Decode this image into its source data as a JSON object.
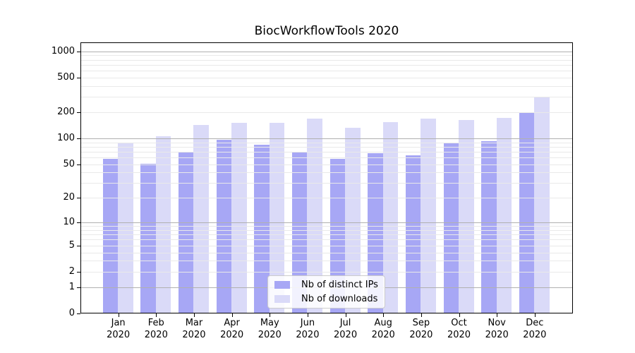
{
  "figure": {
    "title": "BiocWorkflowTools 2020",
    "background_color": "#ffffff"
  },
  "chart_data": {
    "type": "bar",
    "title": "BiocWorkflowTools 2020",
    "categories": [
      "Jan 2020",
      "Feb 2020",
      "Mar 2020",
      "Apr 2020",
      "May 2020",
      "Jun 2020",
      "Jul 2020",
      "Aug 2020",
      "Sep 2020",
      "Oct 2020",
      "Nov 2020",
      "Dec 2020"
    ],
    "category_top": [
      "Jan",
      "Feb",
      "Mar",
      "Apr",
      "May",
      "Jun",
      "Jul",
      "Aug",
      "Sep",
      "Oct",
      "Nov",
      "Dec"
    ],
    "category_bottom": "2020",
    "series": [
      {
        "name": "Nb of distinct IPs",
        "color": "#a7a7f5",
        "values": [
          58,
          51,
          69,
          97,
          84,
          70,
          58,
          67,
          64,
          90,
          92,
          200
        ]
      },
      {
        "name": "Nb of downloads",
        "color": "#dadaf8",
        "values": [
          90,
          105,
          144,
          151,
          152,
          170,
          133,
          155,
          168,
          162,
          172,
          299
        ]
      }
    ],
    "yscale": "log10(value+1)",
    "yticks": [
      1000,
      500,
      200,
      100,
      50,
      20,
      10,
      5,
      2,
      1,
      0
    ],
    "ylim": [
      0,
      1000
    ],
    "xlabel": "",
    "ylabel": "",
    "grid": "both-horizontal",
    "major_grid_values": [
      1,
      10,
      100,
      1000
    ],
    "major_grid_color": "#b0b0b0",
    "minor_grid_color": "#e9e9e9",
    "axis_color": "#000000",
    "legend_position": "bottom-center-inside"
  },
  "legend": {
    "items": [
      {
        "label": "Nb of distinct IPs",
        "color": "#a7a7f5"
      },
      {
        "label": "Nb of downloads",
        "color": "#dadaf8"
      }
    ]
  }
}
